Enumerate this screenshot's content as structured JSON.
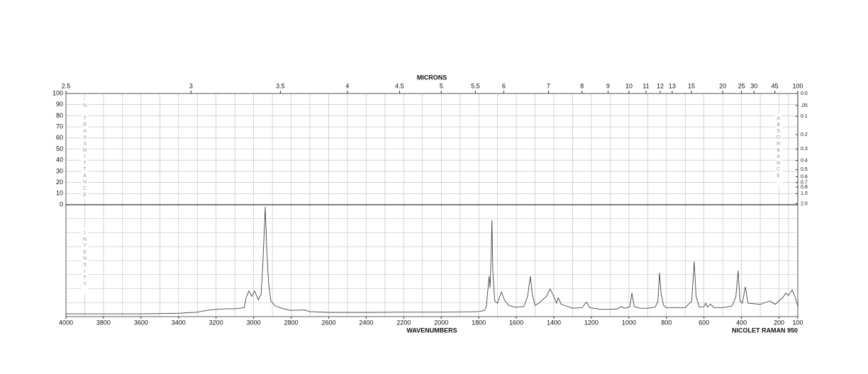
{
  "chart_data": {
    "type": "line",
    "x2_label": "MICRONS",
    "x_label": "WAVENUMBERS",
    "footer": "NICOLET RAMAN 950",
    "y_label": "% TRANSMITTANCE",
    "y2_label": "ABSORBANCE",
    "y_label_lower": "INTENSITY",
    "xlim": [
      4000,
      100
    ],
    "xticks": [
      4000,
      3800,
      3600,
      3400,
      3200,
      3000,
      2800,
      2600,
      2400,
      2200,
      2000,
      1800,
      1600,
      1400,
      1200,
      1000,
      800,
      600,
      400,
      200,
      100
    ],
    "x2ticks": [
      2.5,
      3,
      3.5,
      4,
      4.5,
      5,
      5.5,
      6,
      7,
      8,
      9,
      10,
      11,
      12,
      13,
      15,
      20,
      25,
      30,
      45,
      100
    ],
    "ylim": [
      0,
      100
    ],
    "yticks": [
      0,
      10,
      20,
      30,
      40,
      50,
      60,
      70,
      80,
      90,
      100
    ],
    "y2lim": [
      2,
      0
    ],
    "y2ticks": [
      {
        "value": 0,
        "label": "0.0"
      },
      {
        "value": 0.05,
        "label": ".05"
      },
      0.1,
      0.2,
      0.3,
      0.4,
      0.5,
      0.6,
      0.7,
      0.8,
      {
        "value": 1,
        "label": "1.0"
      },
      {
        "value": 2,
        "label": "2.0"
      }
    ],
    "intensity_lim": [
      0,
      100
    ],
    "grid": true,
    "color": "#444444",
    "x": [
      4000,
      3800,
      3600,
      3400,
      3300,
      3250,
      3200,
      3150,
      3100,
      3050,
      3040,
      3025,
      3010,
      2995,
      2975,
      2960,
      2950,
      2938,
      2930,
      2920,
      2908,
      2885,
      2840,
      2800,
      2730,
      2700,
      2600,
      2400,
      2200,
      2000,
      1900,
      1800,
      1770,
      1760,
      1748,
      1745,
      1740,
      1733,
      1730,
      1725,
      1715,
      1700,
      1680,
      1660,
      1640,
      1620,
      1600,
      1560,
      1540,
      1525,
      1515,
      1500,
      1480,
      1440,
      1420,
      1400,
      1385,
      1377,
      1360,
      1300,
      1250,
      1226,
      1210,
      1150,
      1100,
      1060,
      1041,
      1020,
      995,
      984,
      972,
      940,
      900,
      860,
      845,
      837,
      828,
      815,
      800,
      700,
      665,
      652,
      642,
      625,
      600,
      590,
      582,
      565,
      545,
      500,
      450,
      430,
      418,
      408,
      395,
      380,
      365,
      300,
      250,
      220,
      180,
      164,
      150,
      130,
      115,
      100
    ],
    "values": [
      2.5,
      2.5,
      2.5,
      3,
      4,
      5.5,
      6.5,
      7,
      7,
      8,
      17,
      23,
      18,
      23,
      15,
      20,
      50,
      98,
      60,
      30,
      14,
      9.5,
      7,
      5.5,
      6,
      4.5,
      3.8,
      3.8,
      4,
      4,
      4.2,
      4.5,
      5.5,
      9,
      30,
      36,
      26,
      60,
      86,
      40,
      14,
      12,
      22,
      14,
      10,
      9,
      8.5,
      9,
      18,
      36,
      20,
      10,
      12,
      18,
      24.7,
      18,
      12,
      17,
      11,
      7.5,
      8,
      13,
      8,
      6.5,
      6.5,
      7,
      9,
      7.5,
      9,
      21,
      9,
      7.5,
      7.5,
      8.5,
      14,
      39,
      20,
      10,
      8,
      8,
      14,
      49,
      18,
      8.5,
      9,
      12,
      8.5,
      11,
      8,
      8,
      9.5,
      18,
      41,
      14,
      12,
      26.6,
      12,
      11,
      14,
      11,
      17,
      21,
      19,
      24,
      18,
      9
    ]
  }
}
